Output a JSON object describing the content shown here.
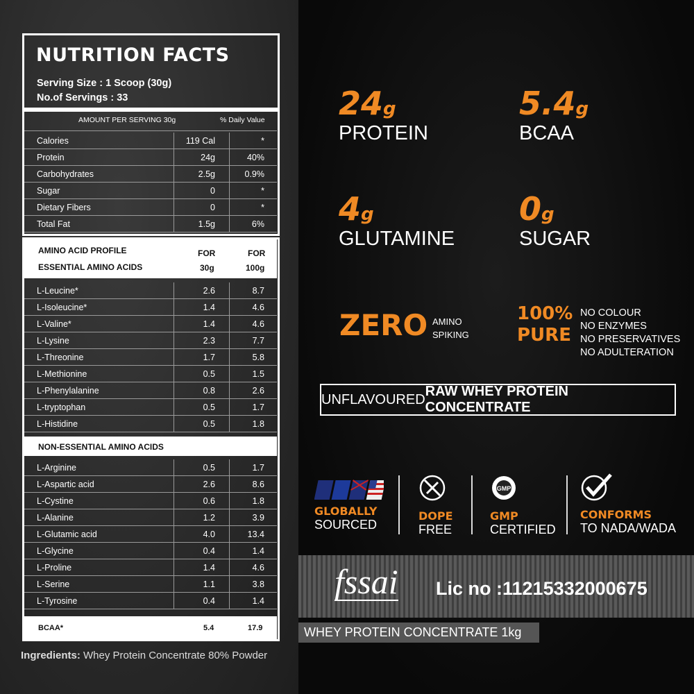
{
  "nutrition": {
    "title": "NUTRITION FACTS",
    "serving_size": "Serving Size : 1 Scoop (30g)",
    "servings": "No.of Servings : 33",
    "col_amount": "AMOUNT PER SERVING 30g",
    "col_dv": "% Daily Value",
    "rows": [
      {
        "name": "Calories",
        "amount": "119 Cal",
        "dv": "*"
      },
      {
        "name": "Protein",
        "amount": "24g",
        "dv": "40%"
      },
      {
        "name": "Carbohydrates",
        "amount": "2.5g",
        "dv": "0.9%"
      },
      {
        "name": "Sugar",
        "amount": "0",
        "dv": "*"
      },
      {
        "name": "Dietary Fibers",
        "amount": "0",
        "dv": "*"
      },
      {
        "name": "Total Fat",
        "amount": "1.5g",
        "dv": "6%"
      }
    ]
  },
  "amino": {
    "title": "AMINO ACID PROFILE",
    "essential_title": "ESSENTIAL AMINO ACIDS",
    "col1": "FOR",
    "col1b": "30g",
    "col2": "FOR",
    "col2b": "100g",
    "essential": [
      {
        "name": "L-Leucine*",
        "a": "2.6",
        "b": "8.7"
      },
      {
        "name": "L-Isoleucine*",
        "a": "1.4",
        "b": "4.6"
      },
      {
        "name": "L-Valine*",
        "a": "1.4",
        "b": "4.6"
      },
      {
        "name": "L-Lysine",
        "a": "2.3",
        "b": "7.7"
      },
      {
        "name": "L-Threonine",
        "a": "1.7",
        "b": "5.8"
      },
      {
        "name": "L-Methionine",
        "a": "0.5",
        "b": "1.5"
      },
      {
        "name": "L-Phenylalanine",
        "a": "0.8",
        "b": "2.6"
      },
      {
        "name": "L-tryptophan",
        "a": "0.5",
        "b": "1.7"
      },
      {
        "name": "L-Histidine",
        "a": "0.5",
        "b": "1.8"
      }
    ],
    "nonessential_title": "NON-ESSENTIAL AMINO ACIDS",
    "nonessential": [
      {
        "name": "L-Arginine",
        "a": "0.5",
        "b": "1.7"
      },
      {
        "name": "L-Aspartic acid",
        "a": "2.6",
        "b": "8.6"
      },
      {
        "name": "L-Cystine",
        "a": "0.6",
        "b": "1.8"
      },
      {
        "name": "L-Alanine",
        "a": "1.2",
        "b": "3.9"
      },
      {
        "name": "L-Glutamic acid",
        "a": "4.0",
        "b": "13.4"
      },
      {
        "name": "L-Glycine",
        "a": "0.4",
        "b": "1.4"
      },
      {
        "name": "L-Proline",
        "a": "1.4",
        "b": "4.6"
      },
      {
        "name": "L-Serine",
        "a": "1.1",
        "b": "3.8"
      },
      {
        "name": "L-Tyrosine",
        "a": "0.4",
        "b": "1.4"
      }
    ],
    "bcaa": {
      "name": "BCAA*",
      "a": "5.4",
      "b": "17.9"
    }
  },
  "ingredients": {
    "label": "Ingredients:",
    "value": " Whey Protein Concentrate 80% Powder"
  },
  "highlights": [
    {
      "num": "24",
      "unit": "g",
      "label": "PROTEIN"
    },
    {
      "num": "5.4",
      "unit": "g",
      "label": "BCAA"
    },
    {
      "num": "4",
      "unit": "g",
      "label": "GLUTAMINE"
    },
    {
      "num": "0",
      "unit": "g",
      "label": "SUGAR"
    }
  ],
  "zero": {
    "big": "ZERO",
    "l1": "AMINO",
    "l2": "SPIKING"
  },
  "pure": {
    "l1": "100%",
    "l2": "PURE",
    "items": [
      "NO COLOUR",
      "NO ENZYMES",
      "NO PRESERVATIVES",
      "NO ADULTERATION"
    ]
  },
  "banner": {
    "light": "UNFLAVOURED ",
    "bold": "RAW WHEY PROTEIN CONCENTRATE"
  },
  "badges": [
    {
      "icon": "flags-icon",
      "t": "GLOBALLY",
      "s": "SOURCED"
    },
    {
      "icon": "no-dope-icon",
      "t": "DOPE",
      "s": "FREE"
    },
    {
      "icon": "gmp-seal-icon",
      "t": "GMP",
      "s": "CERTIFIED"
    },
    {
      "icon": "check-circle-icon",
      "t": "CONFORMS",
      "s": "TO NADA/WADA"
    }
  ],
  "fssai": {
    "logo": "fssai",
    "lic": "Lic no :11215332000675"
  },
  "product": "WHEY PROTEIN CONCENTRATE 1kg",
  "colors": {
    "accent": "#f08a24"
  }
}
